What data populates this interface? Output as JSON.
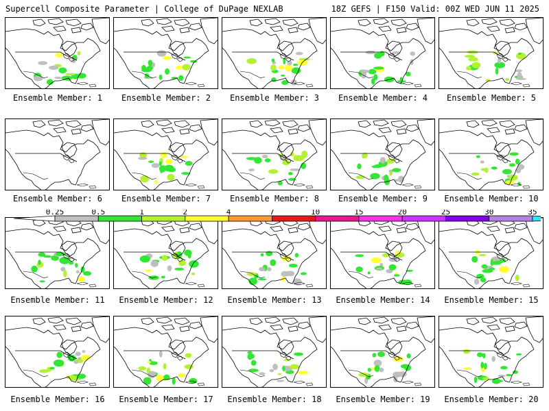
{
  "header": {
    "left": "Supercell Composite Parameter | College of DuPage NEXLAB",
    "right": "18Z GEFS | F150 Valid: 00Z WED JUN 11 2025"
  },
  "caption_prefix": "Ensemble Member: ",
  "members": [
    "1",
    "2",
    "3",
    "4",
    "5",
    "6",
    "7",
    "8",
    "9",
    "10",
    "11",
    "12",
    "13",
    "14",
    "15",
    "16",
    "17",
    "18",
    "19",
    "20"
  ],
  "colorbar": {
    "labels": [
      "0.25",
      "0.5",
      "1",
      "2",
      "4",
      "7",
      "10",
      "15",
      "20",
      "25",
      "30",
      "35"
    ],
    "colors": [
      "#ffffff",
      "#bfbfbf",
      "#33e633",
      "#b3f233",
      "#ffff33",
      "#ff9933",
      "#e61a1a",
      "#e61a8c",
      "#f233e6",
      "#cc33ff",
      "#8000e6",
      "#b380e6",
      "#33e6f2"
    ]
  },
  "layer_colors": {
    "light_gray": "#bfbfbf",
    "green": "#33e633",
    "yellow_green": "#b3f233",
    "yellow": "#ffff33",
    "orange": "#ff9933"
  }
}
